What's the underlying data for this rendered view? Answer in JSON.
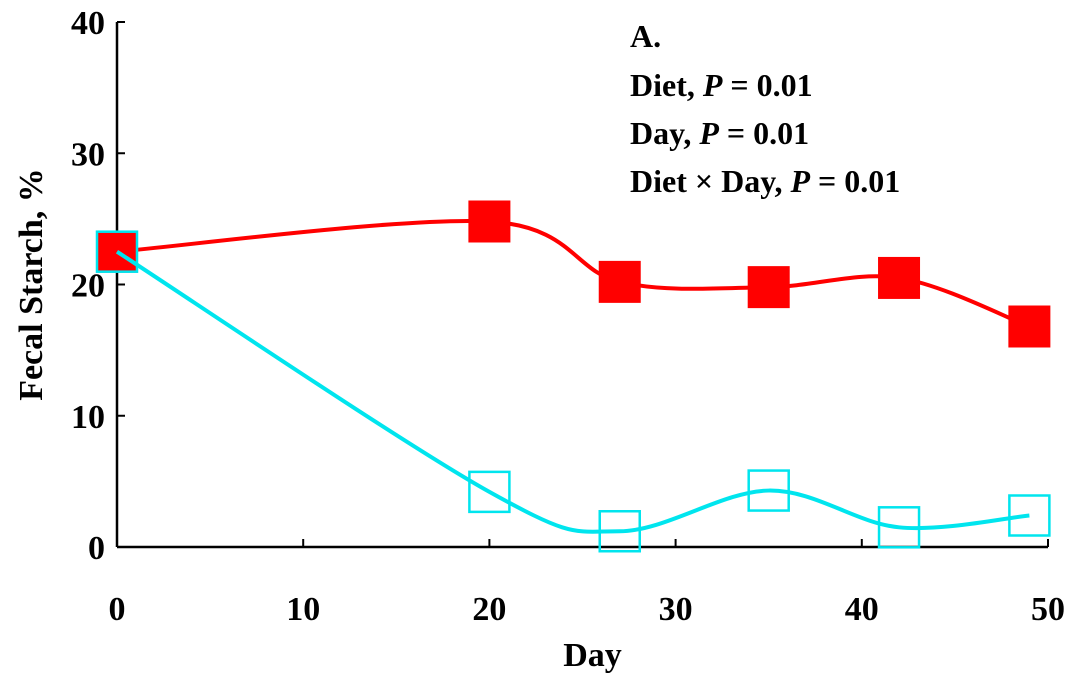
{
  "chart_data": {
    "type": "line",
    "title": "",
    "xlabel": "Day",
    "ylabel": "Fecal Starch, %",
    "xlim": [
      0,
      50
    ],
    "ylim": [
      0,
      40
    ],
    "xticks": [
      0,
      10,
      20,
      30,
      40,
      50
    ],
    "yticks": [
      0,
      10,
      20,
      30,
      40
    ],
    "grid": false,
    "legend": "none",
    "annotations": {
      "panel": "A.",
      "diet_label": "Diet, ",
      "day_label": "Day, ",
      "interaction_label": "Diet × Day, ",
      "p_symbol": "P",
      "p_value_text": " = 0.01"
    },
    "series": [
      {
        "color": "#ff0000",
        "marker": "filled-square",
        "x": [
          0,
          20,
          27,
          35,
          42,
          49
        ],
        "y": [
          22.5,
          24.8,
          20.2,
          19.8,
          20.5,
          16.8
        ]
      },
      {
        "color": "#00e5ee",
        "marker": "open-square",
        "x": [
          0,
          20,
          27,
          35,
          42,
          49
        ],
        "y": [
          22.5,
          4.2,
          1.2,
          4.3,
          1.5,
          2.4
        ]
      }
    ]
  }
}
